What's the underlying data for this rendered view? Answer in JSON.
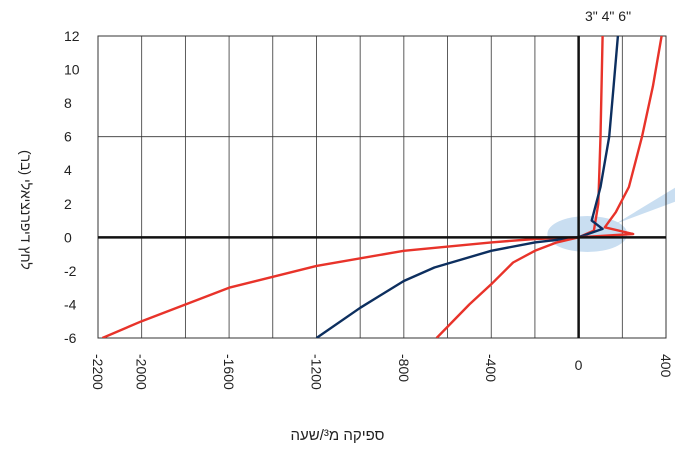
{
  "chart_data": {
    "type": "line",
    "xlabel": "ספיקה מ³/שעה",
    "ylabel": "לחץ דיפרנציאלי (בר)",
    "size_labels": "3\" 4\" 6\"",
    "xlim": [
      -2200,
      400
    ],
    "ylim": [
      -6,
      12
    ],
    "x_ticks": [
      -2200,
      -2000,
      -1600,
      -1200,
      -800,
      -400,
      0,
      400
    ],
    "y_ticks": [
      12,
      10,
      8,
      6,
      4,
      2,
      0,
      -2,
      -4,
      -6
    ],
    "grid": true,
    "colors": {
      "red": "#e8332a",
      "navy": "#0d2f5f",
      "highlight": "#bcd6ee",
      "axis": "#111111",
      "grid": "#333333"
    },
    "series": [
      {
        "color": "#e8332a",
        "points": [
          [
            -2180,
            -6
          ],
          [
            -2000,
            -5
          ],
          [
            -1600,
            -3
          ],
          [
            -1200,
            -1.7
          ],
          [
            -800,
            -0.8
          ],
          [
            -400,
            -0.3
          ],
          [
            -200,
            -0.1
          ],
          [
            0,
            0
          ],
          [
            70,
            0.4
          ],
          [
            90,
            2
          ],
          [
            100,
            6
          ],
          [
            110,
            12
          ]
        ]
      },
      {
        "color": "#0d2f5f",
        "points": [
          [
            -1200,
            -6
          ],
          [
            -1000,
            -4.2
          ],
          [
            -800,
            -2.6
          ],
          [
            -660,
            -1.8
          ],
          [
            -400,
            -0.8
          ],
          [
            -200,
            -0.3
          ],
          [
            0,
            0
          ],
          [
            110,
            0.5
          ],
          [
            60,
            1
          ],
          [
            100,
            3
          ],
          [
            140,
            6
          ],
          [
            160,
            9
          ],
          [
            180,
            12
          ]
        ]
      },
      {
        "color": "#e8332a",
        "points": [
          [
            -650,
            -6
          ],
          [
            -500,
            -4
          ],
          [
            -400,
            -2.8
          ],
          [
            -300,
            -1.5
          ],
          [
            -200,
            -0.8
          ],
          [
            -100,
            -0.3
          ],
          [
            0,
            0
          ],
          [
            250,
            0.2
          ],
          [
            120,
            0.6
          ],
          [
            170,
            1.5
          ],
          [
            230,
            3
          ],
          [
            290,
            6
          ],
          [
            340,
            9
          ],
          [
            380,
            12
          ]
        ]
      }
    ]
  }
}
